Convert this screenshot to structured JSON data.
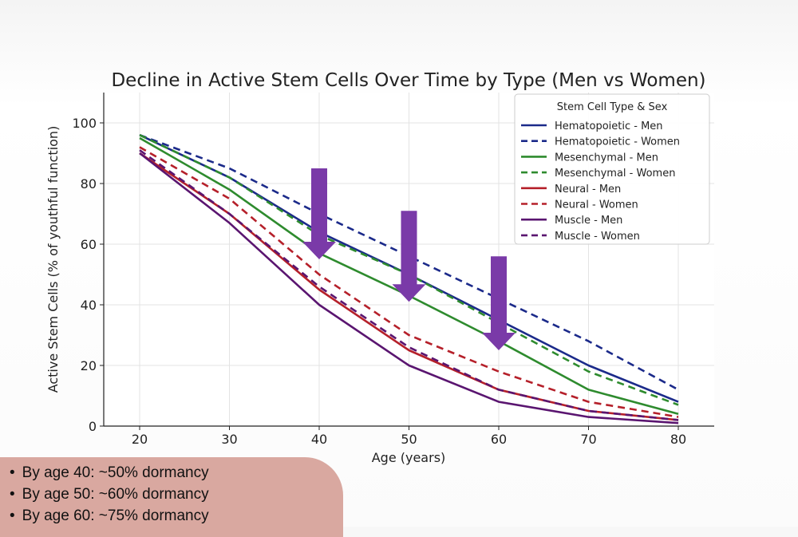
{
  "chart_data": {
    "type": "line",
    "title": "Decline in Active Stem Cells Over Time by Type (Men vs Women)",
    "xlabel": "Age (years)",
    "ylabel": "Active Stem Cells (% of youthful function)",
    "x": [
      20,
      30,
      40,
      50,
      60,
      70,
      80
    ],
    "xlim": [
      16,
      84
    ],
    "ylim": [
      0,
      110
    ],
    "xticks": [
      20,
      30,
      40,
      50,
      60,
      70,
      80
    ],
    "yticks": [
      0,
      20,
      40,
      60,
      80,
      100
    ],
    "grid": true,
    "legend_title": "Stem Cell Type & Sex",
    "legend_position": "top-right",
    "series": [
      {
        "name": "Hematopoietic - Men",
        "color": "#1b2a8a",
        "style": "solid",
        "values": [
          96,
          82,
          64,
          50,
          35,
          20,
          8
        ]
      },
      {
        "name": "Hematopoietic - Women",
        "color": "#1b2a8a",
        "style": "dashed",
        "values": [
          96,
          85,
          70,
          56,
          42,
          28,
          12
        ]
      },
      {
        "name": "Mesenchymal - Men",
        "color": "#2e8b2e",
        "style": "solid",
        "values": [
          95,
          78,
          57,
          43,
          28,
          12,
          4
        ]
      },
      {
        "name": "Mesenchymal - Women",
        "color": "#2e8b2e",
        "style": "dashed",
        "values": [
          96,
          82,
          63,
          50,
          34,
          18,
          7
        ]
      },
      {
        "name": "Neural - Men",
        "color": "#b5202a",
        "style": "solid",
        "values": [
          90,
          70,
          45,
          25,
          12,
          5,
          2
        ]
      },
      {
        "name": "Neural - Women",
        "color": "#b5202a",
        "style": "dashed",
        "values": [
          92,
          75,
          50,
          30,
          18,
          8,
          3
        ]
      },
      {
        "name": "Muscle - Men",
        "color": "#5a1570",
        "style": "solid",
        "values": [
          90,
          67,
          40,
          20,
          8,
          3,
          1
        ]
      },
      {
        "name": "Muscle - Women",
        "color": "#5a1570",
        "style": "dashed",
        "values": [
          91,
          70,
          46,
          26,
          12,
          5,
          2
        ]
      }
    ],
    "annotations": [
      {
        "type": "down-arrow",
        "color": "#7a3aa8",
        "x": 40,
        "y_from": 85,
        "y_to": 55
      },
      {
        "type": "down-arrow",
        "color": "#7a3aa8",
        "x": 50,
        "y_from": 71,
        "y_to": 41
      },
      {
        "type": "down-arrow",
        "color": "#7a3aa8",
        "x": 60,
        "y_from": 56,
        "y_to": 25
      }
    ]
  },
  "callout": {
    "bullet": "•",
    "items": [
      "By age 40: ~50% dormancy",
      "By age 50: ~60% dormancy",
      "By age 60: ~75% dormancy"
    ]
  }
}
